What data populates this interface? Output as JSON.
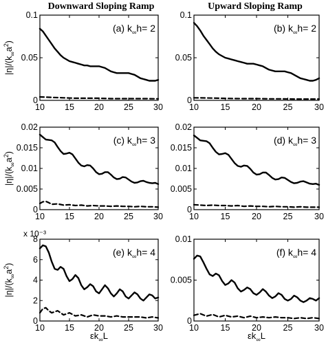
{
  "column_titles": [
    "Downward Sloping Ramp",
    "Upward Sloping Ramp"
  ],
  "xlabel": "εk∞L",
  "ylabel": "|η|/(k∞a²)",
  "chart_data": [
    {
      "type": "line",
      "label": "(a) k∞h= 2",
      "xlim": [
        10,
        30
      ],
      "ylim": [
        0,
        0.1
      ],
      "yticks": [
        0,
        0.05,
        0.1
      ],
      "ytick_labels": [
        "0",
        "0.05",
        "0.1"
      ],
      "xticks": [
        10,
        15,
        20,
        25,
        30
      ],
      "xtick_labels": [
        "10",
        "15",
        "20",
        "25",
        "30"
      ],
      "series": [
        {
          "style": "solid",
          "x": [
            10,
            10.5,
            11,
            11.5,
            12,
            12.5,
            13,
            13.5,
            14,
            14.5,
            15,
            15.5,
            16,
            16.5,
            17,
            17.5,
            18,
            18.5,
            19,
            19.5,
            20,
            20.5,
            21,
            21.5,
            22,
            22.5,
            23,
            23.5,
            24,
            24.5,
            25,
            25.5,
            26,
            26.5,
            27,
            27.5,
            28,
            28.5,
            29,
            29.5,
            30
          ],
          "y": [
            0.084,
            0.081,
            0.076,
            0.071,
            0.066,
            0.061,
            0.057,
            0.053,
            0.05,
            0.048,
            0.046,
            0.045,
            0.044,
            0.043,
            0.042,
            0.041,
            0.041,
            0.04,
            0.04,
            0.04,
            0.04,
            0.039,
            0.038,
            0.036,
            0.034,
            0.033,
            0.032,
            0.032,
            0.032,
            0.032,
            0.032,
            0.031,
            0.03,
            0.028,
            0.026,
            0.025,
            0.024,
            0.023,
            0.023,
            0.023,
            0.024
          ]
        },
        {
          "style": "dashed",
          "x": [
            10,
            12,
            14,
            16,
            18,
            20,
            22,
            24,
            26,
            28,
            30
          ],
          "y": [
            0.004,
            0.0035,
            0.003,
            0.0025,
            0.0025,
            0.0025,
            0.002,
            0.002,
            0.002,
            0.002,
            0.0018
          ]
        }
      ]
    },
    {
      "type": "line",
      "label": "(b) k∞h= 2",
      "xlim": [
        10,
        30
      ],
      "ylim": [
        0,
        0.1
      ],
      "yticks": [
        0,
        0.05,
        0.1
      ],
      "ytick_labels": [
        "0",
        "0.05",
        "0.1"
      ],
      "xticks": [
        10,
        15,
        20,
        25,
        30
      ],
      "xtick_labels": [
        "10",
        "15",
        "20",
        "25",
        "30"
      ],
      "series": [
        {
          "style": "solid",
          "x": [
            10,
            10.5,
            11,
            11.5,
            12,
            12.5,
            13,
            13.5,
            14,
            14.5,
            15,
            15.5,
            16,
            16.5,
            17,
            17.5,
            18,
            18.5,
            19,
            19.5,
            20,
            20.5,
            21,
            21.5,
            22,
            22.5,
            23,
            23.5,
            24,
            24.5,
            25,
            25.5,
            26,
            26.5,
            27,
            27.5,
            28,
            28.5,
            29,
            29.5,
            30
          ],
          "y": [
            0.091,
            0.087,
            0.082,
            0.076,
            0.071,
            0.066,
            0.061,
            0.057,
            0.054,
            0.052,
            0.05,
            0.049,
            0.048,
            0.047,
            0.046,
            0.045,
            0.044,
            0.043,
            0.043,
            0.043,
            0.042,
            0.041,
            0.04,
            0.038,
            0.036,
            0.035,
            0.034,
            0.034,
            0.034,
            0.034,
            0.033,
            0.032,
            0.03,
            0.028,
            0.026,
            0.025,
            0.024,
            0.023,
            0.023,
            0.024,
            0.026
          ]
        },
        {
          "style": "dashed",
          "x": [
            10,
            12,
            14,
            16,
            18,
            20,
            22,
            24,
            26,
            28,
            30
          ],
          "y": [
            0.003,
            0.0028,
            0.0025,
            0.0022,
            0.002,
            0.002,
            0.0018,
            0.0018,
            0.0015,
            0.0015,
            0.0015
          ]
        }
      ]
    },
    {
      "type": "line",
      "label": "(c) k∞h= 3",
      "xlim": [
        10,
        30
      ],
      "ylim": [
        0,
        0.02
      ],
      "yticks": [
        0,
        0.005,
        0.01,
        0.015,
        0.02
      ],
      "ytick_labels": [
        "0",
        "0.005",
        "0.01",
        "0.015",
        "0.02"
      ],
      "xticks": [
        10,
        15,
        20,
        25,
        30
      ],
      "xtick_labels": [
        "10",
        "15",
        "20",
        "25",
        "30"
      ],
      "series": [
        {
          "style": "solid",
          "x": [
            10,
            10.5,
            11,
            11.5,
            12,
            12.5,
            13,
            13.5,
            14,
            14.5,
            15,
            15.5,
            16,
            16.5,
            17,
            17.5,
            18,
            18.5,
            19,
            19.5,
            20,
            20.5,
            21,
            21.5,
            22,
            22.5,
            23,
            23.5,
            24,
            24.5,
            25,
            25.5,
            26,
            26.5,
            27,
            27.5,
            28,
            28.5,
            29,
            29.5,
            30
          ],
          "y": [
            0.0182,
            0.0176,
            0.017,
            0.0169,
            0.0168,
            0.0163,
            0.0152,
            0.0142,
            0.0135,
            0.0136,
            0.0138,
            0.0134,
            0.0124,
            0.0114,
            0.0107,
            0.0105,
            0.0108,
            0.0107,
            0.01,
            0.0091,
            0.0086,
            0.0087,
            0.0091,
            0.0091,
            0.0085,
            0.0078,
            0.0074,
            0.0075,
            0.0079,
            0.0078,
            0.0073,
            0.0068,
            0.0065,
            0.0066,
            0.0069,
            0.007,
            0.0067,
            0.0065,
            0.0064,
            0.0065,
            0.0062
          ]
        },
        {
          "style": "dashed",
          "x": [
            10,
            10.5,
            11,
            11.5,
            12,
            13,
            14,
            15,
            16,
            17,
            18,
            19,
            20,
            21,
            22,
            23,
            24,
            25,
            26,
            27,
            28,
            29,
            30
          ],
          "y": [
            0.0015,
            0.0019,
            0.002,
            0.0017,
            0.0013,
            0.0014,
            0.0011,
            0.0012,
            0.001,
            0.0011,
            0.0009,
            0.001,
            0.0009,
            0.0009,
            0.0008,
            0.0009,
            0.0008,
            0.0008,
            0.0007,
            0.0008,
            0.0007,
            0.0007,
            0.0006
          ]
        }
      ]
    },
    {
      "type": "line",
      "label": "(d) k∞h= 3",
      "xlim": [
        10,
        30
      ],
      "ylim": [
        0,
        0.02
      ],
      "yticks": [
        0,
        0.005,
        0.01,
        0.015,
        0.02
      ],
      "ytick_labels": [
        "0",
        "0.005",
        "0.01",
        "0.015",
        "0.02"
      ],
      "xticks": [
        10,
        15,
        20,
        25,
        30
      ],
      "xtick_labels": [
        "10",
        "15",
        "20",
        "25",
        "30"
      ],
      "series": [
        {
          "style": "solid",
          "x": [
            10,
            10.5,
            11,
            11.5,
            12,
            12.5,
            13,
            13.5,
            14,
            14.5,
            15,
            15.5,
            16,
            16.5,
            17,
            17.5,
            18,
            18.5,
            19,
            19.5,
            20,
            20.5,
            21,
            21.5,
            22,
            22.5,
            23,
            23.5,
            24,
            24.5,
            25,
            25.5,
            26,
            26.5,
            27,
            27.5,
            28,
            28.5,
            29,
            29.5,
            30
          ],
          "y": [
            0.018,
            0.0174,
            0.0168,
            0.0167,
            0.0166,
            0.0161,
            0.015,
            0.014,
            0.0134,
            0.0135,
            0.0137,
            0.0133,
            0.0123,
            0.0113,
            0.0106,
            0.0104,
            0.0107,
            0.0106,
            0.0099,
            0.009,
            0.0085,
            0.0086,
            0.009,
            0.009,
            0.0084,
            0.0077,
            0.0073,
            0.0074,
            0.0078,
            0.0077,
            0.0072,
            0.0067,
            0.0064,
            0.0065,
            0.0068,
            0.0069,
            0.0066,
            0.0063,
            0.0062,
            0.0063,
            0.006
          ]
        },
        {
          "style": "dashed",
          "x": [
            10,
            11,
            12,
            13,
            14,
            15,
            16,
            17,
            18,
            19,
            20,
            21,
            22,
            23,
            24,
            25,
            26,
            27,
            28,
            29,
            30
          ],
          "y": [
            0.0012,
            0.0011,
            0.001,
            0.0011,
            0.001,
            0.001,
            0.0009,
            0.001,
            0.0008,
            0.0009,
            0.0008,
            0.0008,
            0.0007,
            0.0008,
            0.0007,
            0.0007,
            0.0006,
            0.0007,
            0.0006,
            0.0006,
            0.0006
          ]
        }
      ]
    },
    {
      "type": "line",
      "label": "(e) k∞h= 4",
      "xlim": [
        10,
        30
      ],
      "ylim": [
        0,
        8
      ],
      "y_multiplier": "x 10⁻³",
      "yticks": [
        0,
        2,
        4,
        6,
        8
      ],
      "ytick_labels": [
        "0",
        "2",
        "4",
        "6",
        "8"
      ],
      "xticks": [
        10,
        15,
        20,
        25,
        30
      ],
      "xtick_labels": [
        "10",
        "15",
        "20",
        "25",
        "30"
      ],
      "series": [
        {
          "style": "solid",
          "x": [
            10,
            10.5,
            11,
            11.5,
            12,
            12.5,
            13,
            13.5,
            14,
            14.5,
            15,
            15.5,
            16,
            16.5,
            17,
            17.5,
            18,
            18.5,
            19,
            19.5,
            20,
            20.5,
            21,
            21.5,
            22,
            22.5,
            23,
            23.5,
            24,
            24.5,
            25,
            25.5,
            26,
            26.5,
            27,
            27.5,
            28,
            28.5,
            29,
            29.5,
            30
          ],
          "y": [
            7.1,
            7.4,
            7.3,
            6.7,
            5.8,
            5.1,
            5.0,
            5.3,
            5.1,
            4.4,
            3.9,
            4.1,
            4.5,
            4.2,
            3.5,
            3.1,
            3.3,
            3.6,
            3.4,
            2.9,
            2.7,
            3.1,
            3.5,
            3.2,
            2.7,
            2.4,
            2.7,
            3.1,
            2.9,
            2.4,
            2.2,
            2.5,
            2.8,
            2.6,
            2.2,
            2.0,
            2.3,
            2.6,
            2.5,
            2.2,
            2.3
          ]
        },
        {
          "style": "dashed",
          "x": [
            10,
            10.5,
            11,
            11.5,
            12,
            12.5,
            13,
            13.5,
            14,
            15,
            16,
            17,
            18,
            19,
            20,
            21,
            22,
            23,
            24,
            25,
            26,
            27,
            28,
            29,
            30
          ],
          "y": [
            0.8,
            1.2,
            1.3,
            1.0,
            0.8,
            0.9,
            1.0,
            0.8,
            0.6,
            0.8,
            0.5,
            0.6,
            0.4,
            0.6,
            0.5,
            0.5,
            0.4,
            0.5,
            0.4,
            0.4,
            0.4,
            0.4,
            0.3,
            0.4,
            0.3
          ]
        }
      ]
    },
    {
      "type": "line",
      "label": "(f) k∞h= 4",
      "xlim": [
        10,
        30
      ],
      "ylim": [
        0,
        0.01
      ],
      "yticks": [
        0,
        0.005,
        0.01
      ],
      "ytick_labels": [
        "0",
        "0.005",
        "0.01"
      ],
      "xticks": [
        10,
        15,
        20,
        25,
        30
      ],
      "xtick_labels": [
        "10",
        "15",
        "20",
        "25",
        "30"
      ],
      "series": [
        {
          "style": "solid",
          "x": [
            10,
            10.5,
            11,
            11.5,
            12,
            12.5,
            13,
            13.5,
            14,
            14.5,
            15,
            15.5,
            16,
            16.5,
            17,
            17.5,
            18,
            18.5,
            19,
            19.5,
            20,
            20.5,
            21,
            21.5,
            22,
            22.5,
            23,
            23.5,
            24,
            24.5,
            25,
            25.5,
            26,
            26.5,
            27,
            27.5,
            28,
            28.5,
            29,
            29.5,
            30
          ],
          "y": [
            0.0076,
            0.008,
            0.0079,
            0.0072,
            0.0064,
            0.0057,
            0.0055,
            0.0058,
            0.0056,
            0.0049,
            0.0044,
            0.0046,
            0.005,
            0.0047,
            0.004,
            0.0036,
            0.0038,
            0.0041,
            0.0039,
            0.0034,
            0.0032,
            0.0035,
            0.0039,
            0.0036,
            0.0031,
            0.0028,
            0.003,
            0.0034,
            0.0032,
            0.0027,
            0.0025,
            0.0027,
            0.0031,
            0.0029,
            0.0025,
            0.0023,
            0.0025,
            0.0028,
            0.0027,
            0.0025,
            0.0028
          ]
        },
        {
          "style": "dashed",
          "x": [
            10,
            11,
            12,
            13,
            14,
            15,
            16,
            17,
            18,
            19,
            20,
            21,
            22,
            23,
            24,
            25,
            26,
            27,
            28,
            29,
            30
          ],
          "y": [
            0.0007,
            0.0009,
            0.0006,
            0.0008,
            0.0005,
            0.0007,
            0.0005,
            0.0006,
            0.0004,
            0.0006,
            0.0004,
            0.0005,
            0.0004,
            0.0005,
            0.0004,
            0.0004,
            0.0003,
            0.0004,
            0.0003,
            0.0004,
            0.0003
          ]
        }
      ]
    }
  ]
}
